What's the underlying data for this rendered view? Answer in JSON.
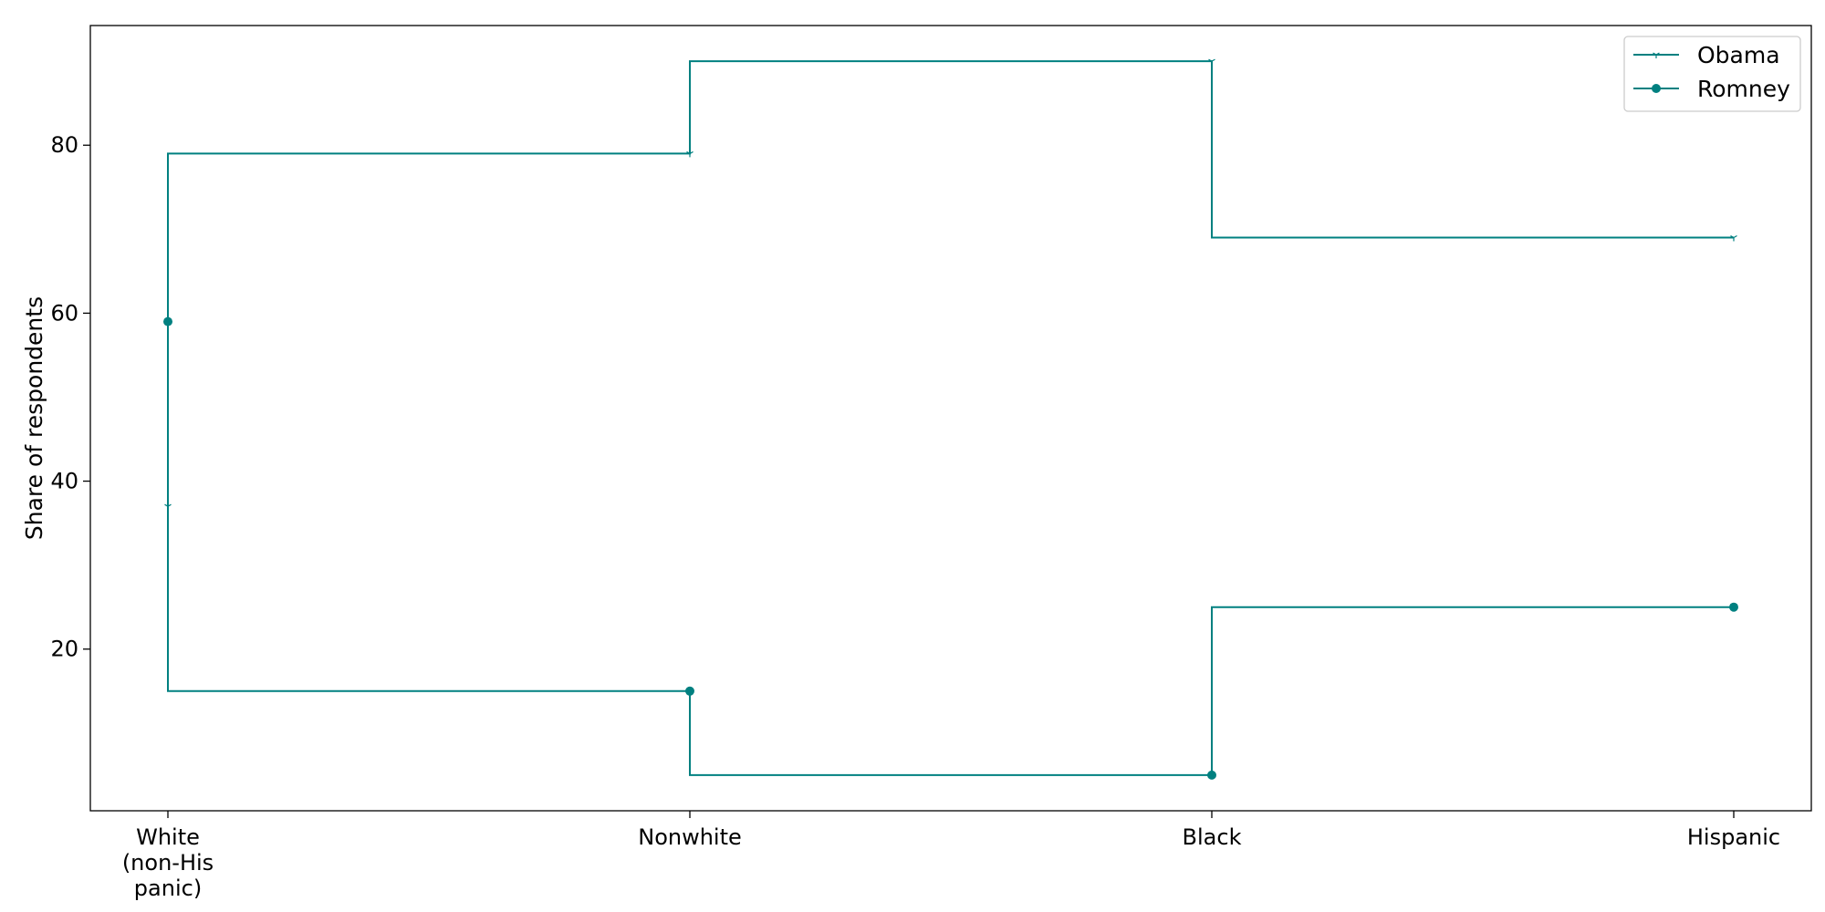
{
  "chart_data": {
    "type": "line",
    "drawstyle": "steps-pre",
    "categories": [
      "White\n(non-His\npanic)",
      "Nonwhite",
      "Black",
      "Hispanic"
    ],
    "series": [
      {
        "name": "Obama",
        "values": [
          37,
          79,
          90,
          69
        ],
        "marker": "tri-down",
        "color": "#008080"
      },
      {
        "name": "Romney",
        "values": [
          59,
          15,
          5,
          25
        ],
        "marker": "circle",
        "color": "#008080"
      }
    ],
    "title": "",
    "xlabel": "",
    "ylabel": "Share of respondents",
    "ylim": [
      0.75,
      94.25
    ],
    "yticks": [
      20,
      40,
      60,
      80
    ],
    "grid": false,
    "legend_position": "top-right"
  }
}
